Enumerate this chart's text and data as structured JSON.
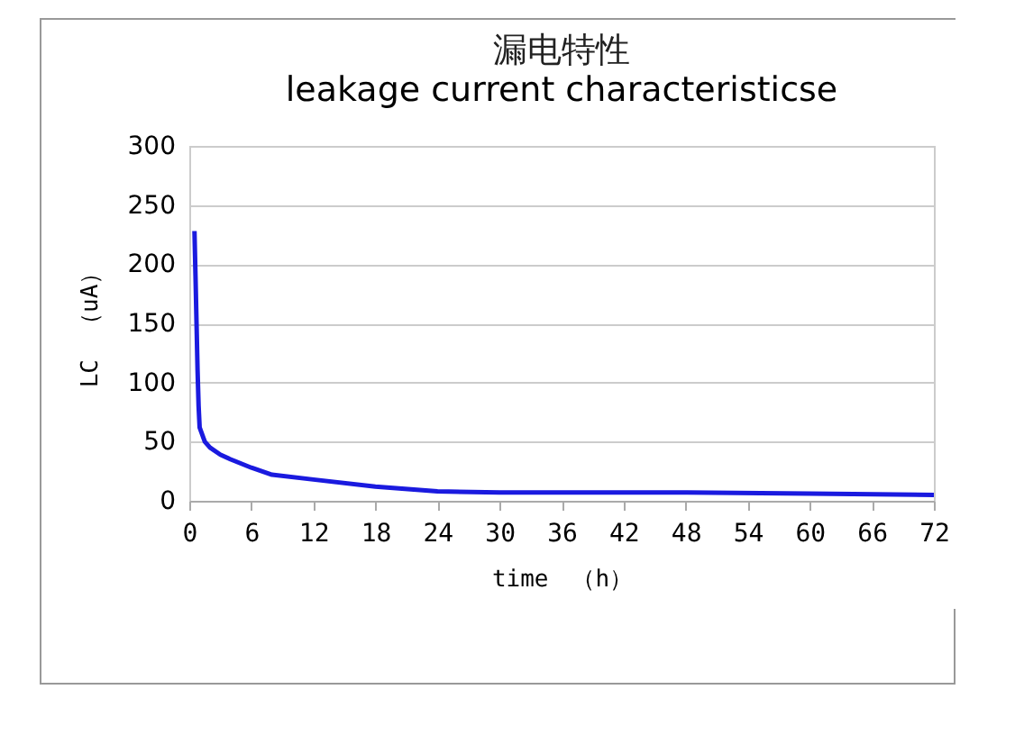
{
  "chart_data": {
    "type": "line",
    "title": "漏电特性",
    "subtitle": "leakage current characteristicse",
    "xlabel": "time　（h）",
    "ylabel": "LC　（uA）",
    "x": [
      0.5,
      0.6,
      0.7,
      0.8,
      0.9,
      1,
      1.5,
      2,
      3,
      4,
      6,
      8,
      12,
      18,
      24,
      30,
      36,
      48,
      60,
      72
    ],
    "series": [
      {
        "color": "#1a1adf",
        "values": [
          228,
          190,
          150,
          110,
          80,
          62,
          50,
          45,
          39,
          35,
          28,
          22,
          18,
          12,
          8,
          7,
          7,
          7,
          6,
          5
        ]
      }
    ],
    "xlim": [
      0,
      72
    ],
    "xticks": [
      0,
      6,
      12,
      18,
      24,
      30,
      36,
      42,
      48,
      54,
      60,
      66,
      72
    ],
    "ylim": [
      0,
      300
    ],
    "yticks": [
      0,
      50,
      100,
      150,
      200,
      250,
      300
    ],
    "grid": "y",
    "marker": "none",
    "line_style": "solid"
  }
}
